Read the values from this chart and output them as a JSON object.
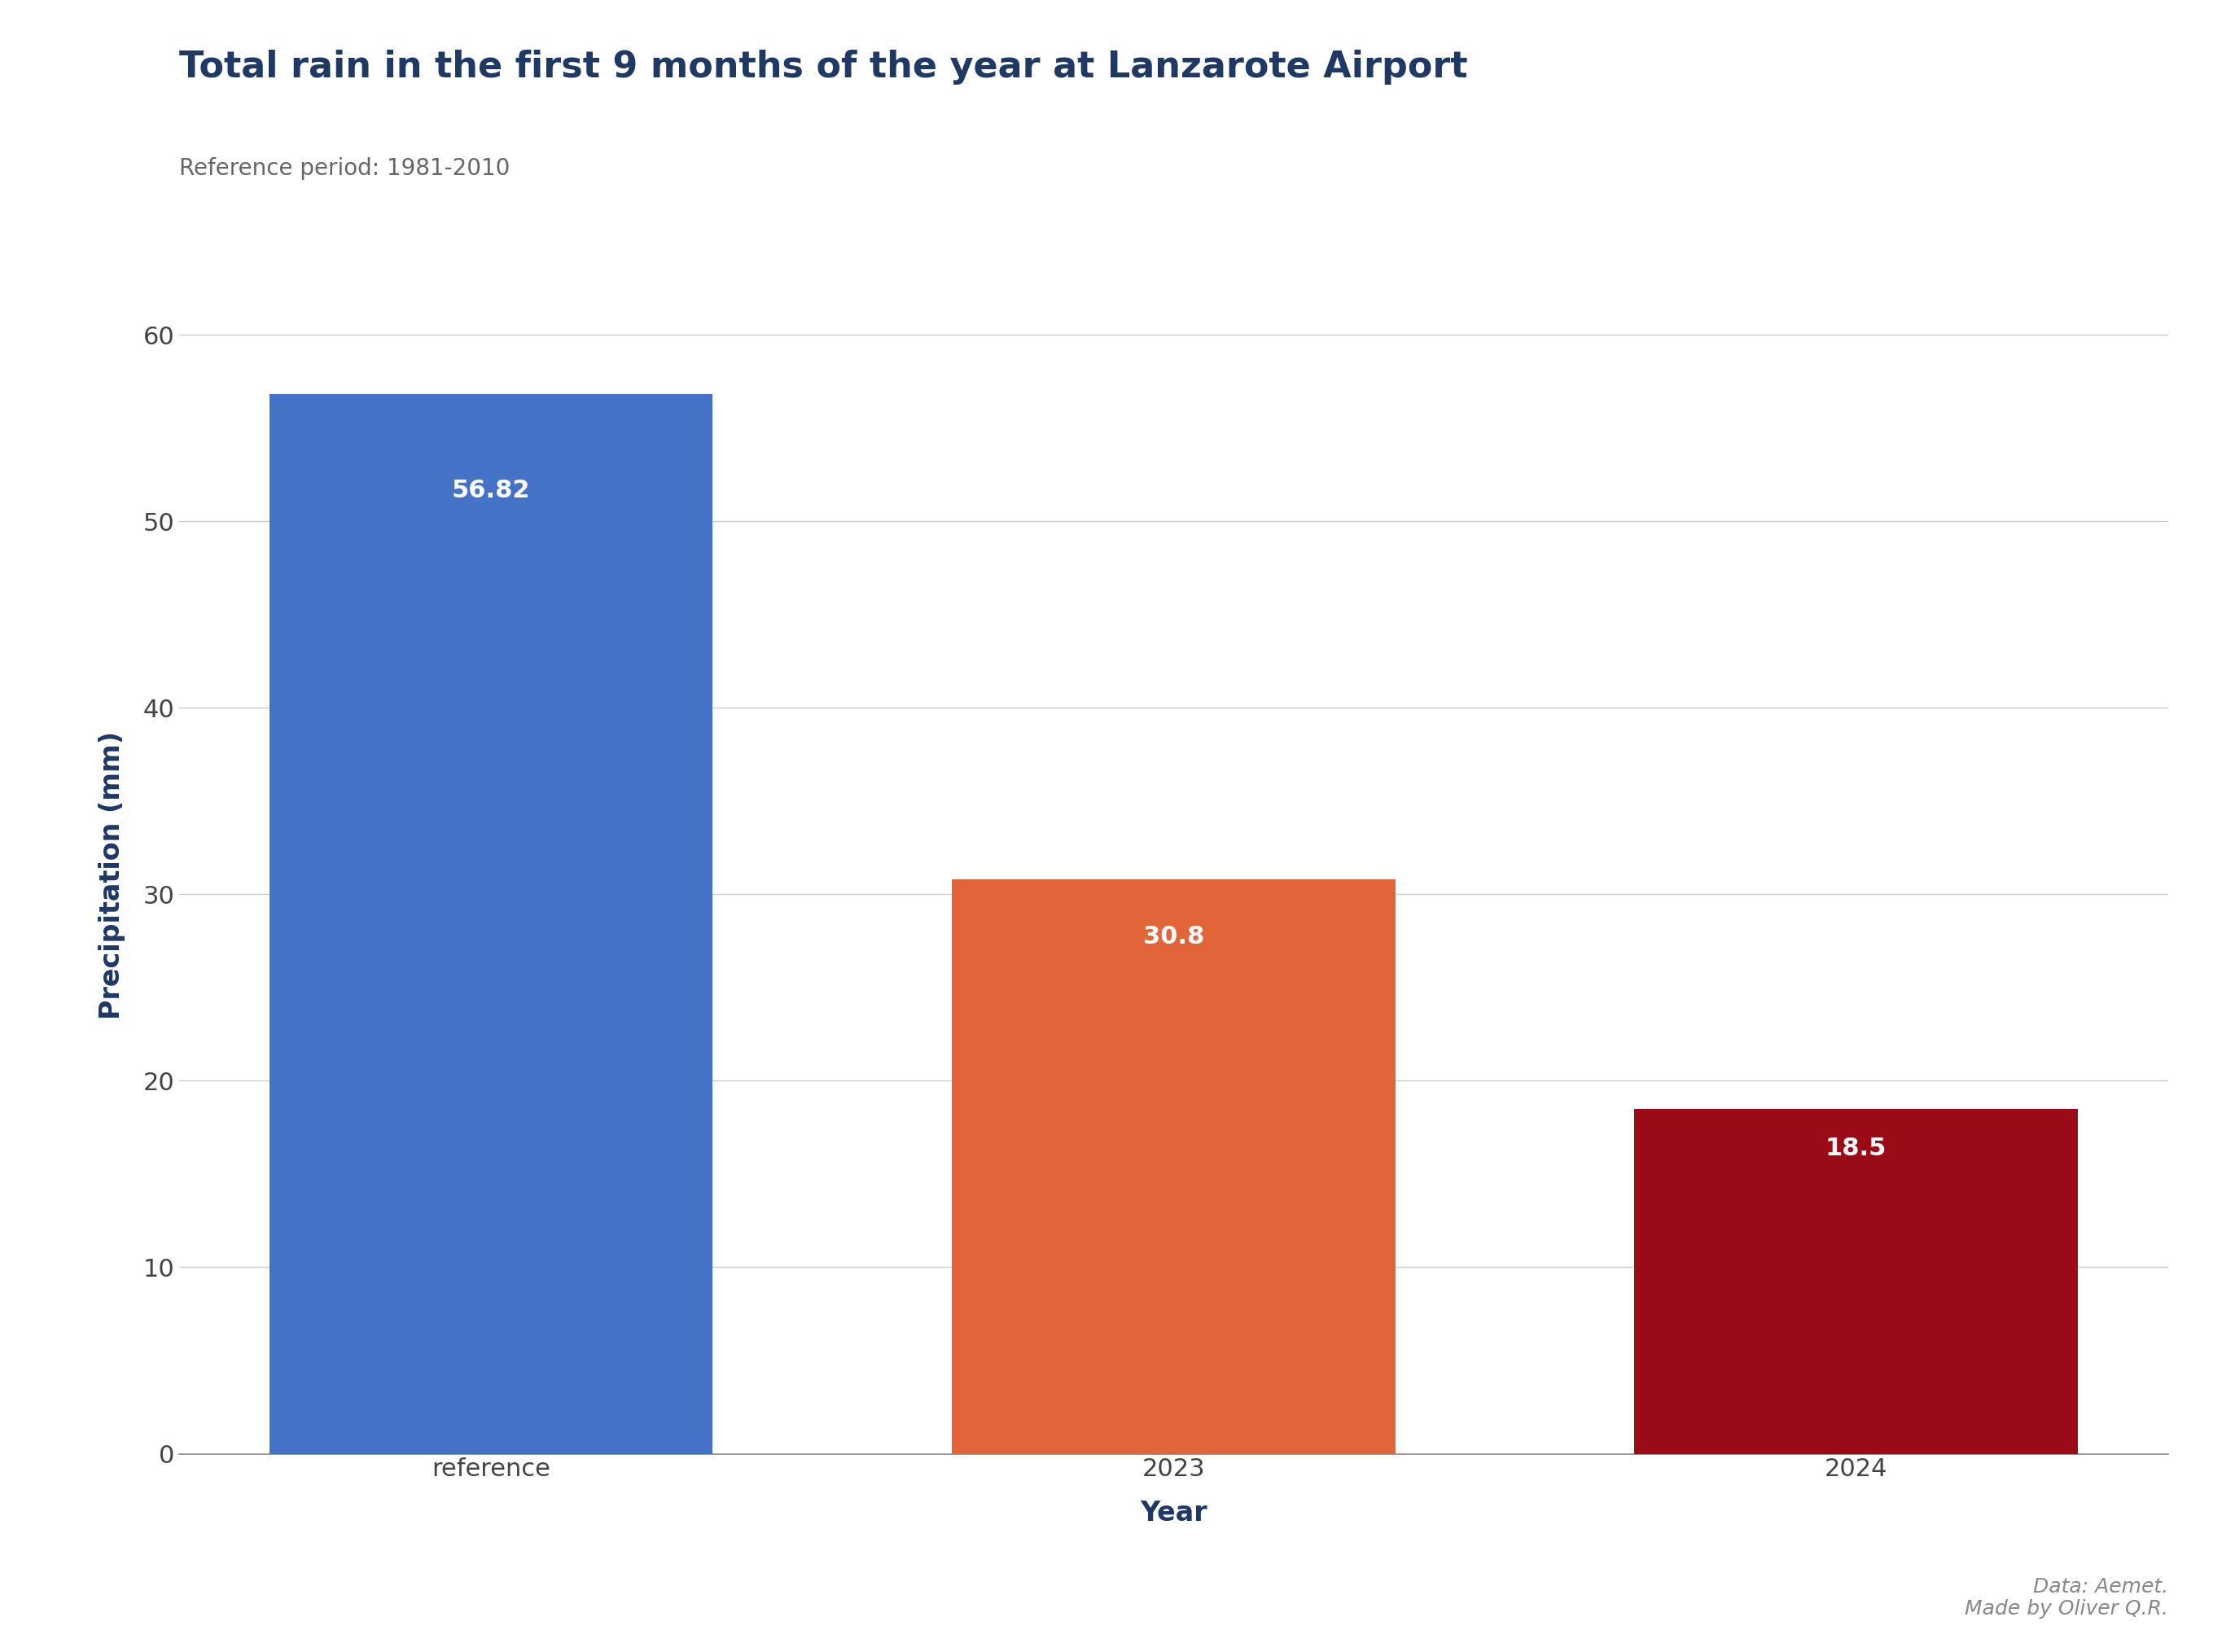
{
  "title": "Total rain in the first 9 months of the year at Lanzarote Airport",
  "subtitle": "Reference period: 1981-2010",
  "categories": [
    "reference",
    "2023",
    "2024"
  ],
  "values": [
    56.82,
    30.8,
    18.5
  ],
  "bar_colors": [
    "#4472C4",
    "#E2653A",
    "#9B0B17"
  ],
  "xlabel": "Year",
  "ylabel": "Precipitation (mm)",
  "ylim": [
    0,
    62
  ],
  "yticks": [
    0,
    10,
    20,
    30,
    40,
    50,
    60
  ],
  "title_color": "#1F3864",
  "subtitle_color": "#666666",
  "xlabel_color": "#1F3864",
  "ylabel_color": "#1F3864",
  "title_fontsize": 32,
  "subtitle_fontsize": 20,
  "label_fontsize": 24,
  "tick_fontsize": 22,
  "value_label_fontsize": 22,
  "value_label_color": "white",
  "background_color": "#FFFFFF",
  "grid_color": "#CCCCCC",
  "annotation": "Data: Aemet.\nMade by Oliver Q.R.",
  "annotation_color": "#888888",
  "annotation_fontsize": 18
}
